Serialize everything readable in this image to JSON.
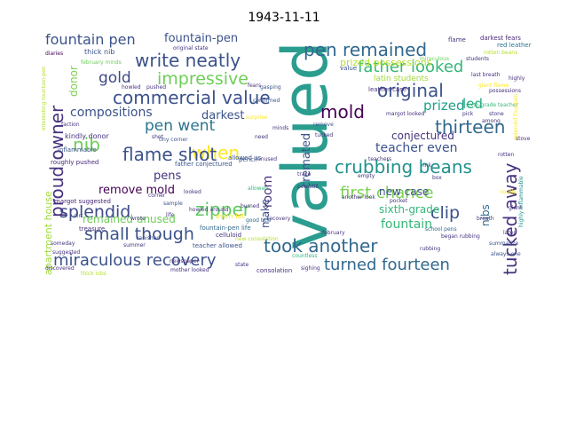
{
  "title": "1943-11-11",
  "words": [
    {
      "text": "valued",
      "color": "#2a9d8f"
    },
    {
      "text": "commercial value",
      "color": "#3b528b"
    },
    {
      "text": "write neatly",
      "color": "#3b528b"
    },
    {
      "text": "pen remained",
      "color": "#31688e"
    },
    {
      "text": "father looked",
      "color": "#35b779"
    },
    {
      "text": "fountain pen",
      "color": "#3b528b"
    },
    {
      "text": "fountain-pen",
      "color": "#3b528b"
    },
    {
      "text": "gold",
      "color": "#3e4a89"
    },
    {
      "text": "impressive",
      "color": "#6ece58"
    },
    {
      "text": "original",
      "color": "#3b528b"
    },
    {
      "text": "proud owner",
      "color": "#46327e"
    },
    {
      "text": "compositions",
      "color": "#3b528b"
    },
    {
      "text": "pen went",
      "color": "#2c728e"
    },
    {
      "text": "thirteen",
      "color": "#31688e"
    },
    {
      "text": "mold",
      "color": "#440154"
    },
    {
      "text": "nib",
      "color": "#6ece58"
    },
    {
      "text": "when",
      "color": "#fde725"
    },
    {
      "text": "flame shot",
      "color": "#3b528b"
    },
    {
      "text": "crubbing beans",
      "color": "#21918c"
    },
    {
      "text": "first chance",
      "color": "#7ad151"
    },
    {
      "text": "zipper",
      "color": "#5ec962"
    },
    {
      "text": "splendid",
      "color": "#3e4a89"
    },
    {
      "text": "small though",
      "color": "#3b528b"
    },
    {
      "text": "miraculous recovery",
      "color": "#3b528b"
    },
    {
      "text": "took another",
      "color": "#31688e"
    },
    {
      "text": "turned fourteen",
      "color": "#31688e"
    },
    {
      "text": "tucked away",
      "color": "#46327e"
    },
    {
      "text": "clip",
      "color": "#3b528b"
    },
    {
      "text": "fountain",
      "color": "#35b779"
    },
    {
      "text": "teacher even",
      "color": "#3b528b"
    },
    {
      "text": "conjectured",
      "color": "#46327e"
    },
    {
      "text": "prized",
      "color": "#1f9e89"
    },
    {
      "text": "led",
      "color": "#22a884"
    },
    {
      "text": "cremated",
      "color": "#3b528b"
    },
    {
      "text": "room",
      "color": "#46327e"
    },
    {
      "text": "make",
      "color": "#3e4a89"
    },
    {
      "text": "remove mold",
      "color": "#440154"
    },
    {
      "text": "remained unused",
      "color": "#6ece58"
    },
    {
      "text": "pens",
      "color": "#46327e"
    },
    {
      "text": "darkest",
      "color": "#3b528b"
    },
    {
      "text": "donor",
      "color": "#7ad151"
    },
    {
      "text": "apartment house",
      "color": "#a0da39"
    },
    {
      "text": "sixth-grade",
      "color": "#35b779"
    },
    {
      "text": "new case",
      "color": "#3b528b"
    },
    {
      "text": "nibs",
      "color": "#31688e"
    },
    {
      "text": "prized possessions",
      "color": "#b5de2b"
    },
    {
      "text": "latin students",
      "color": "#a0da39"
    },
    {
      "text": "darkest fears",
      "color": "#482878"
    },
    {
      "text": "red leather",
      "color": "#2c728e"
    },
    {
      "text": "flame",
      "color": "#46327e"
    },
    {
      "text": "thick nib",
      "color": "#3b528b"
    },
    {
      "text": "february minds",
      "color": "#6ece58"
    },
    {
      "text": "diaries",
      "color": "#440154"
    },
    {
      "text": "value",
      "color": "#3b528b"
    },
    {
      "text": "leather case",
      "color": "#46327e"
    },
    {
      "text": "even let",
      "color": "#fde725"
    },
    {
      "text": "allowed us",
      "color": "#3b528b"
    },
    {
      "text": "margot looked",
      "color": "#482878"
    },
    {
      "text": "kindly donor",
      "color": "#46327e"
    },
    {
      "text": "inflammable",
      "color": "#3b528b"
    },
    {
      "text": "roughly pushed",
      "color": "#482878"
    },
    {
      "text": "father conjectured",
      "color": "#3b528b"
    },
    {
      "text": "fountain-pen life",
      "color": "#31688e"
    },
    {
      "text": "teacher allowed",
      "color": "#3b528b"
    },
    {
      "text": "new consolation",
      "color": "#b5de2b"
    },
    {
      "text": "consolation",
      "color": "#46327e"
    },
    {
      "text": "mother looked",
      "color": "#46327e"
    },
    {
      "text": "good title",
      "color": "#31688e"
    },
    {
      "text": "celluloid",
      "color": "#46327e"
    },
    {
      "text": "recovery",
      "color": "#46327e"
    },
    {
      "text": "margot suggested",
      "color": "#482878"
    },
    {
      "text": "dirt",
      "color": "#3b528b"
    },
    {
      "text": "treasure",
      "color": "#46327e"
    },
    {
      "text": "thick nibs",
      "color": "#b5de2b"
    },
    {
      "text": "sample",
      "color": "#3b528b"
    },
    {
      "text": "pencil",
      "color": "#3b528b"
    },
    {
      "text": "unused",
      "color": "#46327e"
    },
    {
      "text": "pen still",
      "color": "#46327e"
    },
    {
      "text": "trace",
      "color": "#46327e"
    },
    {
      "text": "another look",
      "color": "#46327e"
    },
    {
      "text": "empty",
      "color": "#46327e"
    },
    {
      "text": "february",
      "color": "#46327e"
    },
    {
      "text": "school pens",
      "color": "#31688e"
    },
    {
      "text": "began rubbing",
      "color": "#46327e"
    },
    {
      "text": "teachers",
      "color": "#46327e"
    },
    {
      "text": "sixth-grade teacher",
      "color": "#35b779"
    },
    {
      "text": "remove",
      "color": "#3b528b"
    },
    {
      "text": "tucked",
      "color": "#46327e"
    },
    {
      "text": "margot looked",
      "color": "#46327e"
    },
    {
      "text": "shot",
      "color": "#46327e"
    },
    {
      "text": "tiny corner",
      "color": "#3b528b"
    },
    {
      "text": "confirmed",
      "color": "#3b528b"
    },
    {
      "text": "last breath",
      "color": "#46327e"
    },
    {
      "text": "giant flame",
      "color": "#fde725"
    },
    {
      "text": "rotten beans",
      "color": "#b5de2b"
    },
    {
      "text": "stone",
      "color": "#46327e"
    },
    {
      "text": "possessions",
      "color": "#46327e"
    },
    {
      "text": "splendid fountain",
      "color": "#fde725"
    },
    {
      "text": "highly inflammable",
      "color": "#21918c"
    },
    {
      "text": "summarize",
      "color": "#3b528b"
    },
    {
      "text": "always one",
      "color": "#3b528b"
    },
    {
      "text": "giant",
      "color": "#46327e"
    },
    {
      "text": "miraculous",
      "color": "#6ece58"
    },
    {
      "text": "gasping",
      "color": "#3b528b"
    },
    {
      "text": "original state",
      "color": "#46327e"
    },
    {
      "text": "dumped",
      "color": "#46327e"
    },
    {
      "text": "commercial",
      "color": "#35b779"
    },
    {
      "text": "interesting fountain-pen",
      "color": "#b5de2b"
    },
    {
      "text": "howled",
      "color": "#46327e"
    },
    {
      "text": "pushed",
      "color": "#46327e"
    },
    {
      "text": "highly",
      "color": "#46327e"
    },
    {
      "text": "faction",
      "color": "#46327e"
    },
    {
      "text": "howled around",
      "color": "#46327e"
    },
    {
      "text": "allowed",
      "color": "#35b779"
    },
    {
      "text": "burned",
      "color": "#46327e"
    },
    {
      "text": "countless",
      "color": "#35b779"
    },
    {
      "text": "sighing",
      "color": "#46327e"
    },
    {
      "text": "vanished",
      "color": "#3b528b"
    },
    {
      "text": "someday",
      "color": "#46327e"
    },
    {
      "text": "suggested",
      "color": "#46327e"
    },
    {
      "text": "grandmother",
      "color": "#46327e"
    },
    {
      "text": "newspaper",
      "color": "#46327e"
    },
    {
      "text": "pick",
      "color": "#46327e"
    },
    {
      "text": "among",
      "color": "#46327e"
    },
    {
      "text": "neatly",
      "color": "#fde725"
    },
    {
      "text": "rubbing",
      "color": "#46327e"
    },
    {
      "text": "minds",
      "color": "#46327e"
    },
    {
      "text": "surprise",
      "color": "#fde725"
    },
    {
      "text": "students",
      "color": "#46327e"
    },
    {
      "text": "ink",
      "color": "#46327e"
    },
    {
      "text": "box",
      "color": "#46327e"
    },
    {
      "text": "pocket",
      "color": "#46327e"
    },
    {
      "text": "breath",
      "color": "#46327e"
    },
    {
      "text": "wrote",
      "color": "#46327e"
    },
    {
      "text": "life",
      "color": "#46327e"
    },
    {
      "text": "rotten",
      "color": "#46327e"
    },
    {
      "text": "need",
      "color": "#46327e"
    },
    {
      "text": "fears",
      "color": "#46327e"
    },
    {
      "text": "summer",
      "color": "#46327e"
    },
    {
      "text": "looked",
      "color": "#46327e"
    },
    {
      "text": "state",
      "color": "#46327e"
    },
    {
      "text": "later",
      "color": "#46327e"
    },
    {
      "text": "corner",
      "color": "#46327e"
    },
    {
      "text": "stove",
      "color": "#46327e"
    },
    {
      "text": "discovered",
      "color": "#46327e"
    }
  ]
}
